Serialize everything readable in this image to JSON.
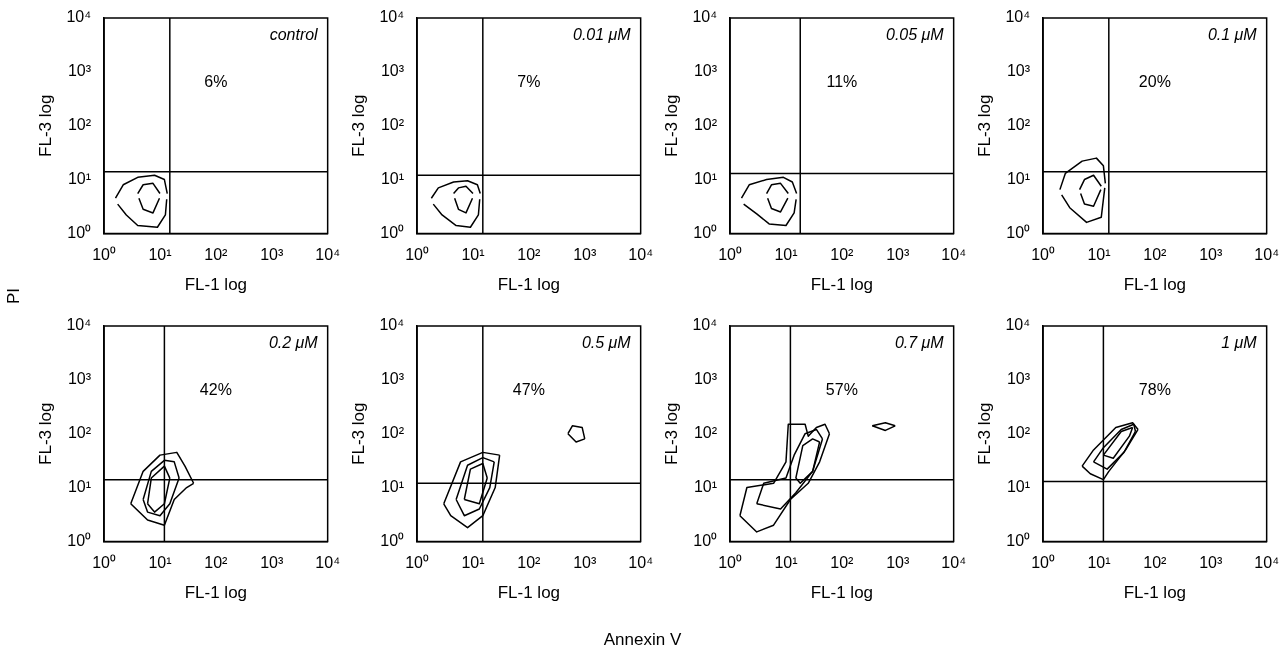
{
  "chart_data": [
    {
      "type": "line",
      "log": "xy",
      "xlabel": "FL-1 log",
      "ylabel": "FL-3 log",
      "xlim": [
        1,
        10000
      ],
      "ylim": [
        1,
        10000
      ],
      "xticks": [
        {
          "value": 1,
          "label": "10⁰"
        },
        {
          "value": 10,
          "label": "10¹"
        },
        {
          "value": 100,
          "label": "10²"
        },
        {
          "value": 1000,
          "label": "10³"
        },
        {
          "value": 10000,
          "label": "10⁴"
        }
      ],
      "yticks": [
        {
          "value": 1,
          "label": "10⁰"
        },
        {
          "value": 10,
          "label": "10¹"
        },
        {
          "value": 100,
          "label": "10²"
        },
        {
          "value": 1000,
          "label": "10³"
        },
        {
          "value": 10000,
          "label": "10⁴"
        }
      ],
      "ref_lines": [
        {
          "axis": "x",
          "value": 15,
          "color": "#000000"
        },
        {
          "axis": "y",
          "value": 14,
          "color": "#000000"
        }
      ],
      "series": [
        {
          "color": "#000000",
          "x": [
            1.6,
            2.2,
            4,
            8,
            12,
            13.5
          ],
          "values": [
            4.5,
            8,
            11,
            12,
            10,
            5.5
          ]
        },
        {
          "color": "#000000",
          "x": [
            1.75,
            2.5,
            4,
            9,
            12.5,
            13.2
          ],
          "values": [
            3.5,
            2.2,
            1.4,
            1.3,
            2.2,
            4.3
          ]
        },
        {
          "color": "#000000",
          "x": [
            4,
            5,
            7.5,
            10
          ],
          "values": [
            5.5,
            8,
            8.5,
            5.5
          ]
        },
        {
          "color": "#000000",
          "x": [
            4.2,
            5,
            7.5,
            9.8
          ],
          "values": [
            4.5,
            2.8,
            2.4,
            4.5
          ]
        }
      ],
      "annotations": [
        "control",
        "6%",
        "PI",
        "Annexin V"
      ]
    },
    {
      "type": "line",
      "log": "xy",
      "xlabel": "FL-1 log",
      "ylabel": "FL-3 log",
      "xlim": [
        1,
        10000
      ],
      "ylim": [
        1,
        10000
      ],
      "xticks": [
        {
          "value": 1,
          "label": "10⁰"
        },
        {
          "value": 10,
          "label": "10¹"
        },
        {
          "value": 100,
          "label": "10²"
        },
        {
          "value": 1000,
          "label": "10³"
        },
        {
          "value": 10000,
          "label": "10⁴"
        }
      ],
      "yticks": [
        {
          "value": 1,
          "label": "10⁰"
        },
        {
          "value": 10,
          "label": "10¹"
        },
        {
          "value": 100,
          "label": "10²"
        },
        {
          "value": 1000,
          "label": "10³"
        },
        {
          "value": 10000,
          "label": "10⁴"
        }
      ],
      "ref_lines": [
        {
          "axis": "x",
          "value": 15,
          "color": "#000000"
        },
        {
          "axis": "y",
          "value": 12,
          "color": "#000000"
        }
      ],
      "series": [
        {
          "color": "#000000",
          "x": [
            1.8,
            2.4,
            4.5,
            8,
            12,
            13.5
          ],
          "values": [
            4.5,
            7,
            9,
            9.5,
            8,
            5.5
          ]
        },
        {
          "color": "#000000",
          "x": [
            1.95,
            2.8,
            5,
            9,
            12.5,
            13.2
          ],
          "values": [
            3.5,
            2.2,
            1.4,
            1.3,
            2.2,
            4.3
          ]
        },
        {
          "color": "#000000",
          "x": [
            4.5,
            5.5,
            7.5,
            10
          ],
          "values": [
            5.5,
            7,
            7.5,
            5.5
          ]
        },
        {
          "color": "#000000",
          "x": [
            4.7,
            5.5,
            7.5,
            9.8
          ],
          "values": [
            4.5,
            2.8,
            2.4,
            4.5
          ]
        }
      ],
      "annotations": [
        "0.01 μM",
        "7%"
      ]
    },
    {
      "type": "line",
      "log": "xy",
      "xlabel": "FL-1 log",
      "ylabel": "FL-3 log",
      "xlim": [
        1,
        10000
      ],
      "ylim": [
        1,
        10000
      ],
      "xticks": [
        {
          "value": 1,
          "label": "10⁰"
        },
        {
          "value": 10,
          "label": "10¹"
        },
        {
          "value": 100,
          "label": "10²"
        },
        {
          "value": 1000,
          "label": "10³"
        },
        {
          "value": 10000,
          "label": "10⁴"
        }
      ],
      "yticks": [
        {
          "value": 1,
          "label": "10⁰"
        },
        {
          "value": 10,
          "label": "10¹"
        },
        {
          "value": 100,
          "label": "10²"
        },
        {
          "value": 1000,
          "label": "10³"
        },
        {
          "value": 10000,
          "label": "10⁴"
        }
      ],
      "ref_lines": [
        {
          "axis": "x",
          "value": 18,
          "color": "#000000"
        },
        {
          "axis": "y",
          "value": 13,
          "color": "#000000"
        }
      ],
      "series": [
        {
          "color": "#000000",
          "x": [
            1.6,
            2.2,
            4.5,
            9,
            13,
            15.5
          ],
          "values": [
            4.5,
            8,
            10,
            11,
            9,
            5.5
          ]
        },
        {
          "color": "#000000",
          "x": [
            1.75,
            3,
            5,
            10,
            14,
            15.2
          ],
          "values": [
            3.5,
            2.3,
            1.5,
            1.4,
            2.4,
            4.3
          ]
        },
        {
          "color": "#000000",
          "x": [
            4.5,
            5.5,
            8,
            11
          ],
          "values": [
            5.5,
            8,
            8.5,
            5.5
          ]
        },
        {
          "color": "#000000",
          "x": [
            4.7,
            5.5,
            8,
            10.8
          ],
          "values": [
            4.5,
            2.9,
            2.5,
            4.5
          ]
        }
      ],
      "annotations": [
        "0.05 μM",
        "11%"
      ]
    },
    {
      "type": "line",
      "log": "xy",
      "xlabel": "FL-1 log",
      "ylabel": "FL-3 log",
      "xlim": [
        1,
        10000
      ],
      "ylim": [
        1,
        10000
      ],
      "xticks": [
        {
          "value": 1,
          "label": "10⁰"
        },
        {
          "value": 10,
          "label": "10¹"
        },
        {
          "value": 100,
          "label": "10²"
        },
        {
          "value": 1000,
          "label": "10³"
        },
        {
          "value": 10000,
          "label": "10⁴"
        }
      ],
      "yticks": [
        {
          "value": 1,
          "label": "10⁰"
        },
        {
          "value": 10,
          "label": "10¹"
        },
        {
          "value": 100,
          "label": "10²"
        },
        {
          "value": 1000,
          "label": "10³"
        },
        {
          "value": 10000,
          "label": "10⁴"
        }
      ],
      "ref_lines": [
        {
          "axis": "x",
          "value": 15,
          "color": "#000000"
        },
        {
          "axis": "y",
          "value": 14,
          "color": "#000000"
        }
      ],
      "series": [
        {
          "color": "#000000",
          "x": [
            2,
            2.5,
            5,
            9,
            12,
            13
          ],
          "values": [
            6.5,
            13,
            22,
            25,
            18,
            8.5
          ]
        },
        {
          "color": "#000000",
          "x": [
            2.15,
            3,
            6,
            11,
            12.7
          ],
          "values": [
            5.2,
            3,
            1.6,
            2,
            7
          ]
        },
        {
          "color": "#000000",
          "x": [
            4.5,
            5.5,
            8,
            11
          ],
          "values": [
            6.5,
            10,
            12,
            7.5
          ]
        },
        {
          "color": "#000000",
          "x": [
            4.7,
            5.5,
            8,
            10.8
          ],
          "values": [
            5.5,
            3.5,
            3.2,
            6.5
          ]
        }
      ],
      "annotations": [
        "0.1 μM",
        "20%"
      ]
    },
    {
      "type": "line",
      "log": "xy",
      "xlabel": "FL-1 log",
      "ylabel": "FL-3 log",
      "xlim": [
        1,
        10000
      ],
      "ylim": [
        1,
        10000
      ],
      "xticks": [
        {
          "value": 1,
          "label": "10⁰"
        },
        {
          "value": 10,
          "label": "10¹"
        },
        {
          "value": 100,
          "label": "10²"
        },
        {
          "value": 1000,
          "label": "10³"
        },
        {
          "value": 10000,
          "label": "10⁴"
        }
      ],
      "yticks": [
        {
          "value": 1,
          "label": "10⁰"
        },
        {
          "value": 10,
          "label": "10¹"
        },
        {
          "value": 100,
          "label": "10²"
        },
        {
          "value": 1000,
          "label": "10³"
        },
        {
          "value": 10000,
          "label": "10⁴"
        }
      ],
      "ref_lines": [
        {
          "axis": "x",
          "value": 12,
          "color": "#000000"
        },
        {
          "axis": "y",
          "value": 14,
          "color": "#000000"
        }
      ],
      "series": [
        {
          "color": "#000000",
          "x": [
            3,
            5,
            10,
            20,
            28,
            40
          ],
          "values": [
            5,
            20,
            40,
            45,
            25,
            12
          ]
        },
        {
          "color": "#000000",
          "x": [
            3,
            6,
            12,
            18,
            30,
            40
          ],
          "values": [
            5,
            2.5,
            2,
            6,
            10,
            12
          ]
        },
        {
          "color": "#000000",
          "x": [
            5,
            7,
            12,
            18,
            22
          ],
          "values": [
            6,
            20,
            32,
            30,
            15
          ]
        },
        {
          "color": "#000000",
          "x": [
            5,
            6,
            10,
            15,
            22
          ],
          "values": [
            6,
            3.5,
            3,
            5,
            15
          ]
        },
        {
          "color": "#000000",
          "x": [
            6,
            7,
            12,
            15
          ],
          "values": [
            5,
            15,
            25,
            15
          ]
        },
        {
          "color": "#000000",
          "x": [
            6,
            8,
            12,
            15
          ],
          "values": [
            5,
            3.5,
            5,
            15
          ]
        }
      ],
      "annotations": [
        "0.2 μM",
        "42%"
      ]
    },
    {
      "type": "line",
      "log": "xy",
      "xlabel": "FL-1 log",
      "ylabel": "FL-3 log",
      "xlim": [
        1,
        10000
      ],
      "ylim": [
        1,
        10000
      ],
      "xticks": [
        {
          "value": 1,
          "label": "10⁰"
        },
        {
          "value": 10,
          "label": "10¹"
        },
        {
          "value": 100,
          "label": "10²"
        },
        {
          "value": 1000,
          "label": "10³"
        },
        {
          "value": 10000,
          "label": "10⁴"
        }
      ],
      "yticks": [
        {
          "value": 1,
          "label": "10⁰"
        },
        {
          "value": 10,
          "label": "10¹"
        },
        {
          "value": 100,
          "label": "10²"
        },
        {
          "value": 1000,
          "label": "10³"
        },
        {
          "value": 10000,
          "label": "10⁴"
        }
      ],
      "ref_lines": [
        {
          "axis": "x",
          "value": 15,
          "color": "#000000"
        },
        {
          "axis": "y",
          "value": 12,
          "color": "#000000"
        }
      ],
      "series": [
        {
          "color": "#000000",
          "x": [
            3,
            6,
            15,
            30
          ],
          "values": [
            5,
            30,
            45,
            40
          ]
        },
        {
          "color": "#000000",
          "x": [
            3,
            4,
            8,
            15,
            25,
            30
          ],
          "values": [
            5,
            3,
            1.8,
            3,
            10,
            40
          ]
        },
        {
          "color": "#000000",
          "x": [
            5,
            8,
            15,
            24
          ],
          "values": [
            6,
            26,
            36,
            30
          ]
        },
        {
          "color": "#000000",
          "x": [
            5,
            7,
            13,
            20,
            24
          ],
          "values": [
            6,
            3,
            4,
            10,
            30
          ]
        },
        {
          "color": "#000000",
          "x": [
            7,
            9,
            15,
            18
          ],
          "values": [
            6,
            22,
            28,
            15
          ]
        },
        {
          "color": "#000000",
          "x": [
            7,
            13,
            18
          ],
          "values": [
            6,
            5,
            15
          ]
        },
        {
          "color": "#000000",
          "x": [
            500,
            600,
            900,
            1000
          ],
          "values": [
            100,
            140,
            130,
            80
          ]
        },
        {
          "color": "#000000",
          "x": [
            500,
            700,
            1000
          ],
          "values": [
            100,
            70,
            80
          ]
        }
      ],
      "annotations": [
        "0.5 μM",
        "47%"
      ]
    },
    {
      "type": "line",
      "log": "xy",
      "xlabel": "FL-1 log",
      "ylabel": "FL-3 log",
      "xlim": [
        1,
        10000
      ],
      "ylim": [
        1,
        10000
      ],
      "xticks": [
        {
          "value": 1,
          "label": "10⁰"
        },
        {
          "value": 10,
          "label": "10¹"
        },
        {
          "value": 100,
          "label": "10²"
        },
        {
          "value": 1000,
          "label": "10³"
        },
        {
          "value": 10000,
          "label": "10⁴"
        }
      ],
      "yticks": [
        {
          "value": 1,
          "label": "10⁰"
        },
        {
          "value": 10,
          "label": "10¹"
        },
        {
          "value": 100,
          "label": "10²"
        },
        {
          "value": 1000,
          "label": "10³"
        },
        {
          "value": 10000,
          "label": "10⁴"
        }
      ],
      "ref_lines": [
        {
          "axis": "x",
          "value": 12,
          "color": "#000000"
        },
        {
          "axis": "y",
          "value": 14,
          "color": "#000000"
        }
      ],
      "series": [
        {
          "color": "#000000",
          "x": [
            1.5,
            2,
            6,
            10,
            11,
            22,
            25,
            35,
            50,
            60
          ],
          "values": [
            3,
            10,
            12,
            30,
            150,
            150,
            90,
            130,
            150,
            100
          ]
        },
        {
          "color": "#000000",
          "x": [
            1.5,
            3,
            6,
            12,
            25,
            40,
            60
          ],
          "values": [
            3,
            1.5,
            2,
            6,
            12,
            30,
            100
          ]
        },
        {
          "color": "#000000",
          "x": [
            3,
            4,
            10,
            14,
            22,
            35,
            45
          ],
          "values": [
            5,
            12,
            15,
            40,
            100,
            120,
            80
          ]
        },
        {
          "color": "#000000",
          "x": [
            3,
            8,
            15,
            30,
            45
          ],
          "values": [
            5,
            4,
            8,
            20,
            80
          ]
        },
        {
          "color": "#000000",
          "x": [
            15,
            20,
            30,
            40
          ],
          "values": [
            15,
            60,
            80,
            70
          ]
        },
        {
          "color": "#000000",
          "x": [
            15,
            18,
            30,
            40
          ],
          "values": [
            15,
            12,
            20,
            70
          ]
        },
        {
          "color": "#000000",
          "x": [
            350,
            600,
            900
          ],
          "values": [
            140,
            160,
            140
          ]
        },
        {
          "color": "#000000",
          "x": [
            350,
            600,
            900
          ],
          "values": [
            140,
            115,
            140
          ]
        }
      ],
      "annotations": [
        "0.7 μM",
        "57%"
      ]
    },
    {
      "type": "line",
      "log": "xy",
      "xlabel": "FL-1 log",
      "ylabel": "FL-3 log",
      "xlim": [
        1,
        10000
      ],
      "ylim": [
        1,
        10000
      ],
      "xticks": [
        {
          "value": 1,
          "label": "10⁰"
        },
        {
          "value": 10,
          "label": "10¹"
        },
        {
          "value": 100,
          "label": "10²"
        },
        {
          "value": 1000,
          "label": "10³"
        },
        {
          "value": 10000,
          "label": "10⁴"
        }
      ],
      "yticks": [
        {
          "value": 1,
          "label": "10⁰"
        },
        {
          "value": 10,
          "label": "10¹"
        },
        {
          "value": 100,
          "label": "10²"
        },
        {
          "value": 1000,
          "label": "10³"
        },
        {
          "value": 10000,
          "label": "10⁴"
        }
      ],
      "ref_lines": [
        {
          "axis": "x",
          "value": 12,
          "color": "#000000"
        },
        {
          "axis": "y",
          "value": 13,
          "color": "#000000"
        }
      ],
      "series": [
        {
          "color": "#000000",
          "x": [
            5,
            8,
            20,
            40,
            50
          ],
          "values": [
            25,
            50,
            130,
            160,
            120
          ]
        },
        {
          "color": "#000000",
          "x": [
            5,
            7,
            12,
            15,
            30,
            50
          ],
          "values": [
            25,
            18,
            14,
            20,
            50,
            120
          ]
        },
        {
          "color": "#000000",
          "x": [
            8,
            12,
            25,
            42,
            45
          ],
          "values": [
            30,
            55,
            120,
            150,
            110
          ]
        },
        {
          "color": "#000000",
          "x": [
            8,
            14,
            28,
            45
          ],
          "values": [
            30,
            22,
            45,
            110
          ]
        },
        {
          "color": "#000000",
          "x": [
            12,
            25,
            40
          ],
          "values": [
            40,
            110,
            130
          ]
        },
        {
          "color": "#000000",
          "x": [
            12,
            18,
            35,
            40
          ],
          "values": [
            40,
            35,
            90,
            130
          ]
        }
      ],
      "annotations": [
        "1 μM",
        "78%"
      ]
    }
  ]
}
